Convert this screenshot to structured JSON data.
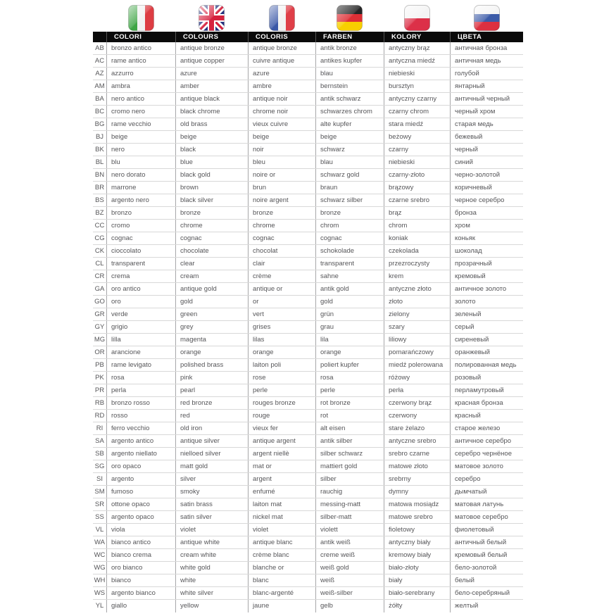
{
  "page": {
    "background": "#ffffff"
  },
  "flags": [
    {
      "icon": "italy-flag-icon",
      "country": "Italy"
    },
    {
      "icon": "uk-flag-icon",
      "country": "United Kingdom"
    },
    {
      "icon": "france-flag-icon",
      "country": "France"
    },
    {
      "icon": "germany-flag-icon",
      "country": "Germany"
    },
    {
      "icon": "poland-flag-icon",
      "country": "Poland"
    },
    {
      "icon": "russia-flag-icon",
      "country": "Russia"
    }
  ],
  "header": {
    "bar_color": "#0a0a0a",
    "text_color": "#ffffff",
    "columns": [
      "COLORI",
      "COLOURS",
      "COLORIS",
      "FARBEN",
      "KOLORY",
      "ЦВЕТА"
    ]
  },
  "table": {
    "column_keys": [
      "code",
      "it",
      "en",
      "fr",
      "de",
      "pl",
      "ru"
    ],
    "text_color": "#565659",
    "rows": [
      [
        "AB",
        "bronzo antico",
        "antique bronze",
        "antique bronze",
        "antik bronze",
        "antyczny brąz",
        "античная бронза"
      ],
      [
        "AC",
        "rame antico",
        "antique copper",
        "cuivre antique",
        "antikes kupfer",
        "antyczna miedź",
        "античная медь"
      ],
      [
        "AZ",
        "azzurro",
        "azure",
        "azure",
        "blau",
        "niebieski",
        "голубой"
      ],
      [
        "AM",
        "ambra",
        "amber",
        "ambre",
        "bernstein",
        "bursztyn",
        "янтарный"
      ],
      [
        "BA",
        "nero antico",
        "antique black",
        "antique noir",
        "antik schwarz",
        "antyczny czarny",
        "античный черный"
      ],
      [
        "BC",
        "cromo nero",
        "black chrome",
        "chrome noir",
        "schwarzes chrom",
        "czarny chrom",
        "черный хром"
      ],
      [
        "BG",
        "rame vecchio",
        "old brass",
        "vieux cuivre",
        "alte kupfer",
        "stara miedź",
        "старая медь"
      ],
      [
        "BJ",
        "beige",
        "beige",
        "beige",
        "beige",
        "beżowy",
        "бежевый"
      ],
      [
        "BK",
        "nero",
        "black",
        "noir",
        "schwarz",
        "czarny",
        "черный"
      ],
      [
        "BL",
        "blu",
        "blue",
        "bleu",
        "blau",
        "niebieski",
        "синий"
      ],
      [
        "BN",
        "nero dorato",
        "black gold",
        "noire or",
        "schwarz gold",
        "czarny-złoto",
        "черно-золотой"
      ],
      [
        "BR",
        "marrone",
        "brown",
        "brun",
        "braun",
        "brązowy",
        "коричневый"
      ],
      [
        "BS",
        "argento nero",
        "black silver",
        "noire argent",
        "schwarz silber",
        "czarne srebro",
        "черное серебро"
      ],
      [
        "BZ",
        "bronzo",
        "bronze",
        "bronze",
        "bronze",
        "brąz",
        "бронза"
      ],
      [
        "CC",
        "cromo",
        "chrome",
        "chrome",
        "chrom",
        "chrom",
        "хром"
      ],
      [
        "CG",
        "cognac",
        "cognac",
        "cognac",
        "cognac",
        "koniak",
        "коньяк"
      ],
      [
        "CK",
        "cioccolato",
        "chocolate",
        "chocolat",
        "schokolade",
        "czekolada",
        "шоколад"
      ],
      [
        "CL",
        "transparent",
        "clear",
        "clair",
        "transparent",
        "przezroczysty",
        "прозрачный"
      ],
      [
        "CR",
        "crema",
        "cream",
        "crème",
        "sahne",
        "krem",
        "кремовый"
      ],
      [
        "GA",
        "oro antico",
        "antique gold",
        "antique or",
        "antik gold",
        "antyczne złoto",
        "античное золото"
      ],
      [
        "GO",
        "oro",
        "gold",
        "or",
        "gold",
        "złoto",
        "золото"
      ],
      [
        "GR",
        "verde",
        "green",
        "vert",
        "grün",
        "zielony",
        "зеленый"
      ],
      [
        "GY",
        "grigio",
        "grey",
        "grises",
        "grau",
        "szary",
        "серый"
      ],
      [
        "MG",
        "lilla",
        "magenta",
        "lilas",
        "lila",
        "liliowy",
        "сиреневый"
      ],
      [
        "OR",
        "arancione",
        "orange",
        "orange",
        "orange",
        "pomarańczowy",
        "оранжевый"
      ],
      [
        "PB",
        "rame levigato",
        "polished brass",
        "laiton poli",
        "poliert kupfer",
        "miedź polerowana",
        "полированная медь"
      ],
      [
        "PK",
        "rosa",
        "pink",
        "rose",
        "rosa",
        "różowy",
        "розовый"
      ],
      [
        "PR",
        "perla",
        "pearl",
        "perle",
        "perle",
        "perła",
        "перламутровый"
      ],
      [
        "RB",
        "bronzo rosso",
        "red bronze",
        "rouges bronze",
        "rot bronze",
        "czerwony brąz",
        "красная бронза"
      ],
      [
        "RD",
        "rosso",
        "red",
        "rouge",
        "rot",
        "czerwony",
        "красный"
      ],
      [
        "RI",
        "ferro vecchio",
        "old iron",
        "vieux fer",
        "alt eisen",
        "stare żelazo",
        "старое железо"
      ],
      [
        "SA",
        "argento antico",
        "antique silver",
        "antique argent",
        "antik silber",
        "antyczne srebro",
        "античное серебро"
      ],
      [
        "SB",
        "argento niellato",
        "nielloed silver",
        "argent niellè",
        "silber schwarz",
        "srebro czarne",
        "серебро чернёное"
      ],
      [
        "SG",
        "oro opaco",
        "matt gold",
        "mat or",
        "mattiert gold",
        "matowe złoto",
        "матовое золото"
      ],
      [
        "SI",
        "argento",
        "silver",
        "argent",
        "silber",
        "srebrny",
        "серебро"
      ],
      [
        "SM",
        "fumoso",
        "smoky",
        "enfumé",
        "rauchig",
        "dymny",
        "дымчатый"
      ],
      [
        "SR",
        "ottone opaco",
        "satin brass",
        "laiton mat",
        "messing-matt",
        "matowa mosiądz",
        "матовая латунь"
      ],
      [
        "SS",
        "argento opaco",
        "satin silver",
        "nickel mat",
        "silber-matt",
        "matowe srebro",
        "матовое серебро"
      ],
      [
        "VL",
        "viola",
        "violet",
        "violet",
        "violett",
        "fioletowy",
        "фиолетовый"
      ],
      [
        "WA",
        "bianco antico",
        "antique white",
        "antique blanc",
        "antik weiß",
        "antyczny biały",
        "античный белый"
      ],
      [
        "WC",
        "bianco crema",
        "cream white",
        "crème blanc",
        "creme weiß",
        "kremowy biały",
        "кремовый белый"
      ],
      [
        "WG",
        "oro bianco",
        "white gold",
        "blanche or",
        "weiß gold",
        "biało-złoty",
        "бело-золотой"
      ],
      [
        "WH",
        "bianco",
        "white",
        "blanc",
        "weiß",
        "biały",
        "белый"
      ],
      [
        "WS",
        "argento bianco",
        "white silver",
        "blanc-argenté",
        "weiß-silber",
        "biało-serebrany",
        "бело-серебряный"
      ],
      [
        "YL",
        "giallo",
        "yellow",
        "jaune",
        "gelb",
        "żółty",
        "желтый"
      ]
    ]
  },
  "colors": {
    "divider_vertical": "#a7a7a9",
    "divider_horizontal": "#d8d8d8",
    "italy_green": "#3fa545",
    "italy_red": "#dd3d43",
    "uk_blue": "#25337f",
    "uk_red": "#d6213e",
    "france_blue": "#3a57a7",
    "france_red": "#df3f48",
    "germany_black": "#262626",
    "germany_red": "#dd2f35",
    "germany_gold": "#f8cf00",
    "poland_red": "#dc3048",
    "russia_blue": "#3c5ba8",
    "russia_red": "#dc3040"
  }
}
